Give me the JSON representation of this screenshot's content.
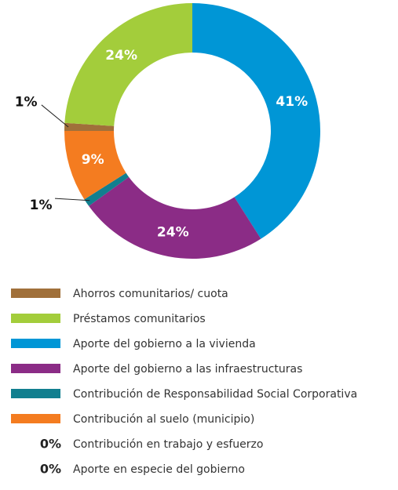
{
  "chart_data": {
    "type": "donut",
    "categories": [
      "Ahorros comunitarios/ cuota",
      "Préstamos comunitarios",
      "Aporte del gobierno a la vivienda",
      "Aporte del gobierno a las infraestructuras",
      "Contribución de Responsabilidad Social Corporativa",
      "Contribución al suelo (municipio)",
      "Contribución en trabajo y esfuerzo",
      "Aporte en especie del gobierno"
    ],
    "values": [
      1,
      24,
      41,
      24,
      1,
      9,
      0,
      0
    ],
    "value_labels": [
      "1%",
      "24%",
      "41%",
      "24%",
      "1%",
      "9%",
      "0%",
      "0%"
    ],
    "colors": [
      "#a0703a",
      "#a3cd3b",
      "#0096d6",
      "#8b2c86",
      "#117f8f",
      "#f47c20",
      null,
      null
    ]
  }
}
